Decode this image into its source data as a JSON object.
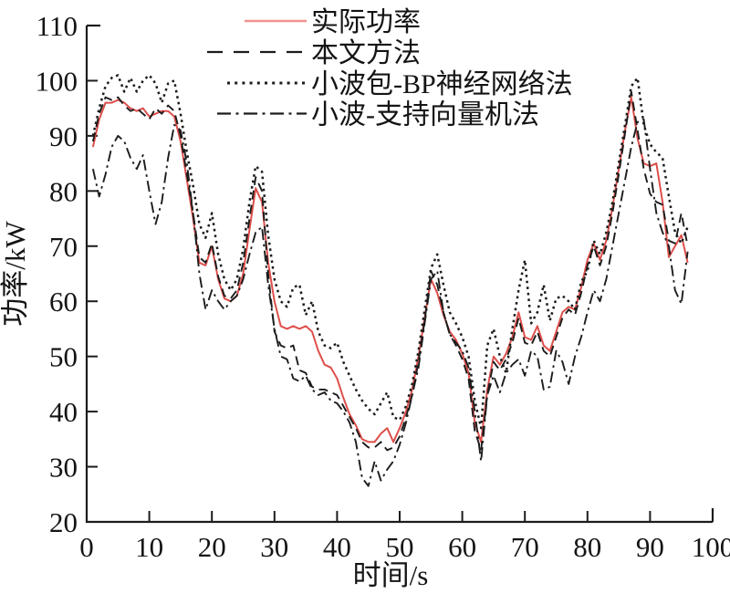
{
  "chart_data": {
    "type": "line",
    "title": "",
    "xlabel": "时间/s",
    "ylabel": "功率/kW",
    "xlim": [
      0,
      100
    ],
    "ylim": [
      20,
      110
    ],
    "x_ticks": [
      0,
      10,
      20,
      30,
      40,
      50,
      60,
      70,
      80,
      90,
      100
    ],
    "y_ticks": [
      20,
      30,
      40,
      50,
      60,
      70,
      80,
      90,
      100,
      110
    ],
    "grid": false,
    "legend_position": "top-inside",
    "axis_color": "#1c1c1c",
    "x_start": 1,
    "x_step": 1,
    "series": [
      {
        "key": "actual-power",
        "name": "实际功率",
        "style": "solid",
        "color": "#dd4f4b",
        "legend_color": "#f0938e",
        "values": [
          88,
          93,
          96,
          96,
          96.5,
          96,
          95,
          94.5,
          95,
          93.5,
          94,
          94.5,
          94.5,
          93.5,
          89,
          82,
          75,
          67,
          66.5,
          70,
          64,
          60.5,
          60,
          61,
          65,
          73,
          80.5,
          78,
          67,
          60,
          55.5,
          55,
          55.5,
          55,
          55.5,
          54.5,
          51,
          48.5,
          48,
          46,
          42.5,
          39.5,
          37.5,
          35,
          34.5,
          34.5,
          36,
          37,
          34.5,
          37,
          40,
          44,
          50,
          57,
          64,
          61.5,
          57.5,
          54.5,
          53,
          50.5,
          47,
          38,
          34.5,
          44,
          50,
          48.5,
          50.5,
          53.5,
          58,
          53.5,
          53,
          55.5,
          52,
          51,
          54.5,
          58,
          59,
          58.5,
          62.5,
          67.5,
          70.5,
          67.5,
          71,
          77,
          84,
          91,
          97,
          89.5,
          85,
          84.5,
          85,
          78,
          68,
          70,
          72,
          67
        ]
      },
      {
        "key": "proposed-method",
        "name": "本文方法",
        "style": "dashed",
        "color": "#1c1c1c",
        "legend_color": "#1c1c1c",
        "values": [
          89,
          94,
          97,
          96.5,
          97,
          95.5,
          94.5,
          95,
          94,
          93,
          95,
          94,
          95.5,
          94.5,
          90,
          83,
          76,
          68,
          67,
          70.5,
          64.5,
          61,
          60.5,
          62,
          67,
          75,
          82.5,
          80,
          65,
          54.5,
          52,
          51.5,
          52,
          47.5,
          47,
          44.5,
          44,
          44,
          43.5,
          43,
          41,
          39,
          37,
          34.5,
          33.5,
          33.5,
          34.5,
          33,
          33.5,
          35.5,
          39,
          43,
          49,
          56.5,
          65.5,
          63,
          58,
          54,
          52,
          49.5,
          46,
          36.5,
          33,
          43,
          49,
          47.5,
          49.5,
          52.5,
          57,
          52.5,
          52,
          54.5,
          51,
          50,
          53.5,
          57,
          58.5,
          57.5,
          61.5,
          66.5,
          70,
          66.5,
          70,
          76,
          83,
          90.5,
          98,
          91,
          84,
          79.5,
          78,
          77.5,
          71,
          70.5,
          76,
          70
        ]
      },
      {
        "key": "wavelet-packet-bp",
        "name": "小波包-BP神经网络法",
        "style": "dotted",
        "color": "#1c1c1c",
        "legend_color": "#1c1c1c",
        "values": [
          90,
          95,
          99,
          100.5,
          101,
          98,
          100.5,
          98,
          100,
          101,
          99.5,
          96,
          99.5,
          100,
          94,
          87,
          81,
          74,
          71.5,
          76,
          68.5,
          64,
          62,
          64,
          69.5,
          78,
          84.5,
          83.5,
          72,
          64,
          60,
          59,
          62.5,
          63,
          57.5,
          60,
          54.5,
          52,
          51.5,
          52.5,
          49,
          46.5,
          44,
          42,
          40.5,
          39.5,
          41.5,
          43.5,
          39,
          38.5,
          41,
          45,
          51,
          58.5,
          66,
          68.5,
          63,
          58,
          56,
          53.5,
          50,
          42,
          37,
          52,
          55,
          50,
          47,
          55,
          62,
          67.5,
          56,
          58,
          63,
          56.5,
          60.5,
          61,
          60,
          58.5,
          63.5,
          65.5,
          71,
          68.5,
          72.5,
          78,
          85,
          92,
          99,
          100.5,
          92,
          88.5,
          87,
          86,
          79,
          72.5,
          70.5,
          73.5
        ]
      },
      {
        "key": "wavelet-svm",
        "name": "小波-支持向量机法",
        "style": "dashdot",
        "color": "#1c1c1c",
        "legend_color": "#1c1c1c",
        "values": [
          84,
          79,
          83,
          88,
          90,
          89,
          86,
          84,
          86.5,
          80,
          74,
          78,
          86,
          92,
          91,
          85,
          76,
          65,
          58.5,
          62,
          60,
          58.5,
          60,
          61,
          64,
          68.5,
          72.5,
          73.5,
          63,
          55,
          50,
          49.5,
          46,
          45.5,
          46.5,
          44,
          43,
          43.5,
          42,
          41.5,
          40,
          38,
          34.5,
          28,
          26.5,
          31,
          27.5,
          29.5,
          31,
          34,
          38,
          43,
          48,
          56,
          64,
          65.5,
          58,
          54,
          52.5,
          51,
          48,
          40,
          31,
          43,
          46.5,
          43.5,
          47,
          48.5,
          49.5,
          46.5,
          51,
          50,
          44,
          44.5,
          51,
          49,
          45,
          50,
          53.5,
          58,
          62,
          60,
          64,
          70,
          76,
          82,
          88,
          92.5,
          93,
          84,
          76,
          72.5,
          70,
          62,
          59.5,
          69
        ]
      }
    ]
  }
}
